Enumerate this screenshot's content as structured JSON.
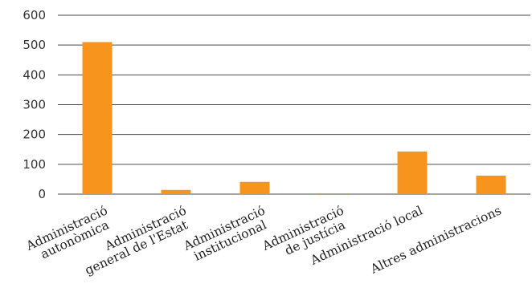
{
  "chart_data": {
    "type": "bar",
    "title": "",
    "xlabel": "",
    "ylabel": "",
    "ylim": [
      0,
      600
    ],
    "yticks": [
      "0",
      "100",
      "200",
      "300",
      "400",
      "500",
      "600"
    ],
    "grid": true,
    "legend": "none",
    "categories": [
      [
        "Administració",
        "autonòmica"
      ],
      [
        "Administració",
        "general de l'Estat"
      ],
      [
        "Administració",
        "institucional"
      ],
      [
        "Administració",
        "de justícia"
      ],
      [
        "Administració local"
      ],
      [
        "Altres administracions"
      ]
    ],
    "values": [
      510,
      14,
      41,
      2,
      143,
      62
    ],
    "colors": {
      "bar": "#f7941d",
      "grid": "#4a4a4a"
    }
  }
}
